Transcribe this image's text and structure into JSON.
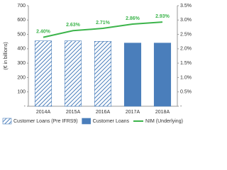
{
  "chart_data": {
    "type": "bar",
    "y_axis_label": "(€ in billions)",
    "categories": [
      "2014A",
      "2015A",
      "2016A",
      "2017A",
      "2018A"
    ],
    "series": [
      {
        "name": "Customer Loans (Pre IFRS9)",
        "color": "#4a7ebb",
        "hatch": true,
        "values": [
          455,
          455,
          452,
          null,
          null
        ]
      },
      {
        "name": "Customer Loans",
        "color": "#4a7ebb",
        "values": [
          null,
          null,
          null,
          440,
          440
        ]
      },
      {
        "name": "NIM (Underlying)",
        "type": "line",
        "axis": "y2",
        "color": "#3cb44b",
        "values": [
          2.4,
          2.63,
          2.71,
          2.86,
          2.93
        ],
        "value_labels": [
          "2.40%",
          "2.63%",
          "2.71%",
          "2.86%",
          "2.93%"
        ]
      }
    ],
    "ylim": [
      0,
      700
    ],
    "yticks": [
      {
        "value": 0,
        "label": "-"
      },
      100,
      200,
      300,
      400,
      500,
      600,
      700
    ],
    "y2lim": [
      0,
      3.5
    ],
    "y2ticks": [
      {
        "value": 0,
        "label": "-"
      },
      {
        "value": 0.5,
        "label": "0.5%"
      },
      {
        "value": 1.0,
        "label": "1.0%"
      },
      {
        "value": 1.5,
        "label": "1.5%"
      },
      {
        "value": 2.0,
        "label": "2.0%"
      },
      {
        "value": 2.5,
        "label": "2.5%"
      },
      {
        "value": 3.0,
        "label": "3.0%"
      },
      {
        "value": 3.5,
        "label": "3.5%"
      }
    ]
  }
}
